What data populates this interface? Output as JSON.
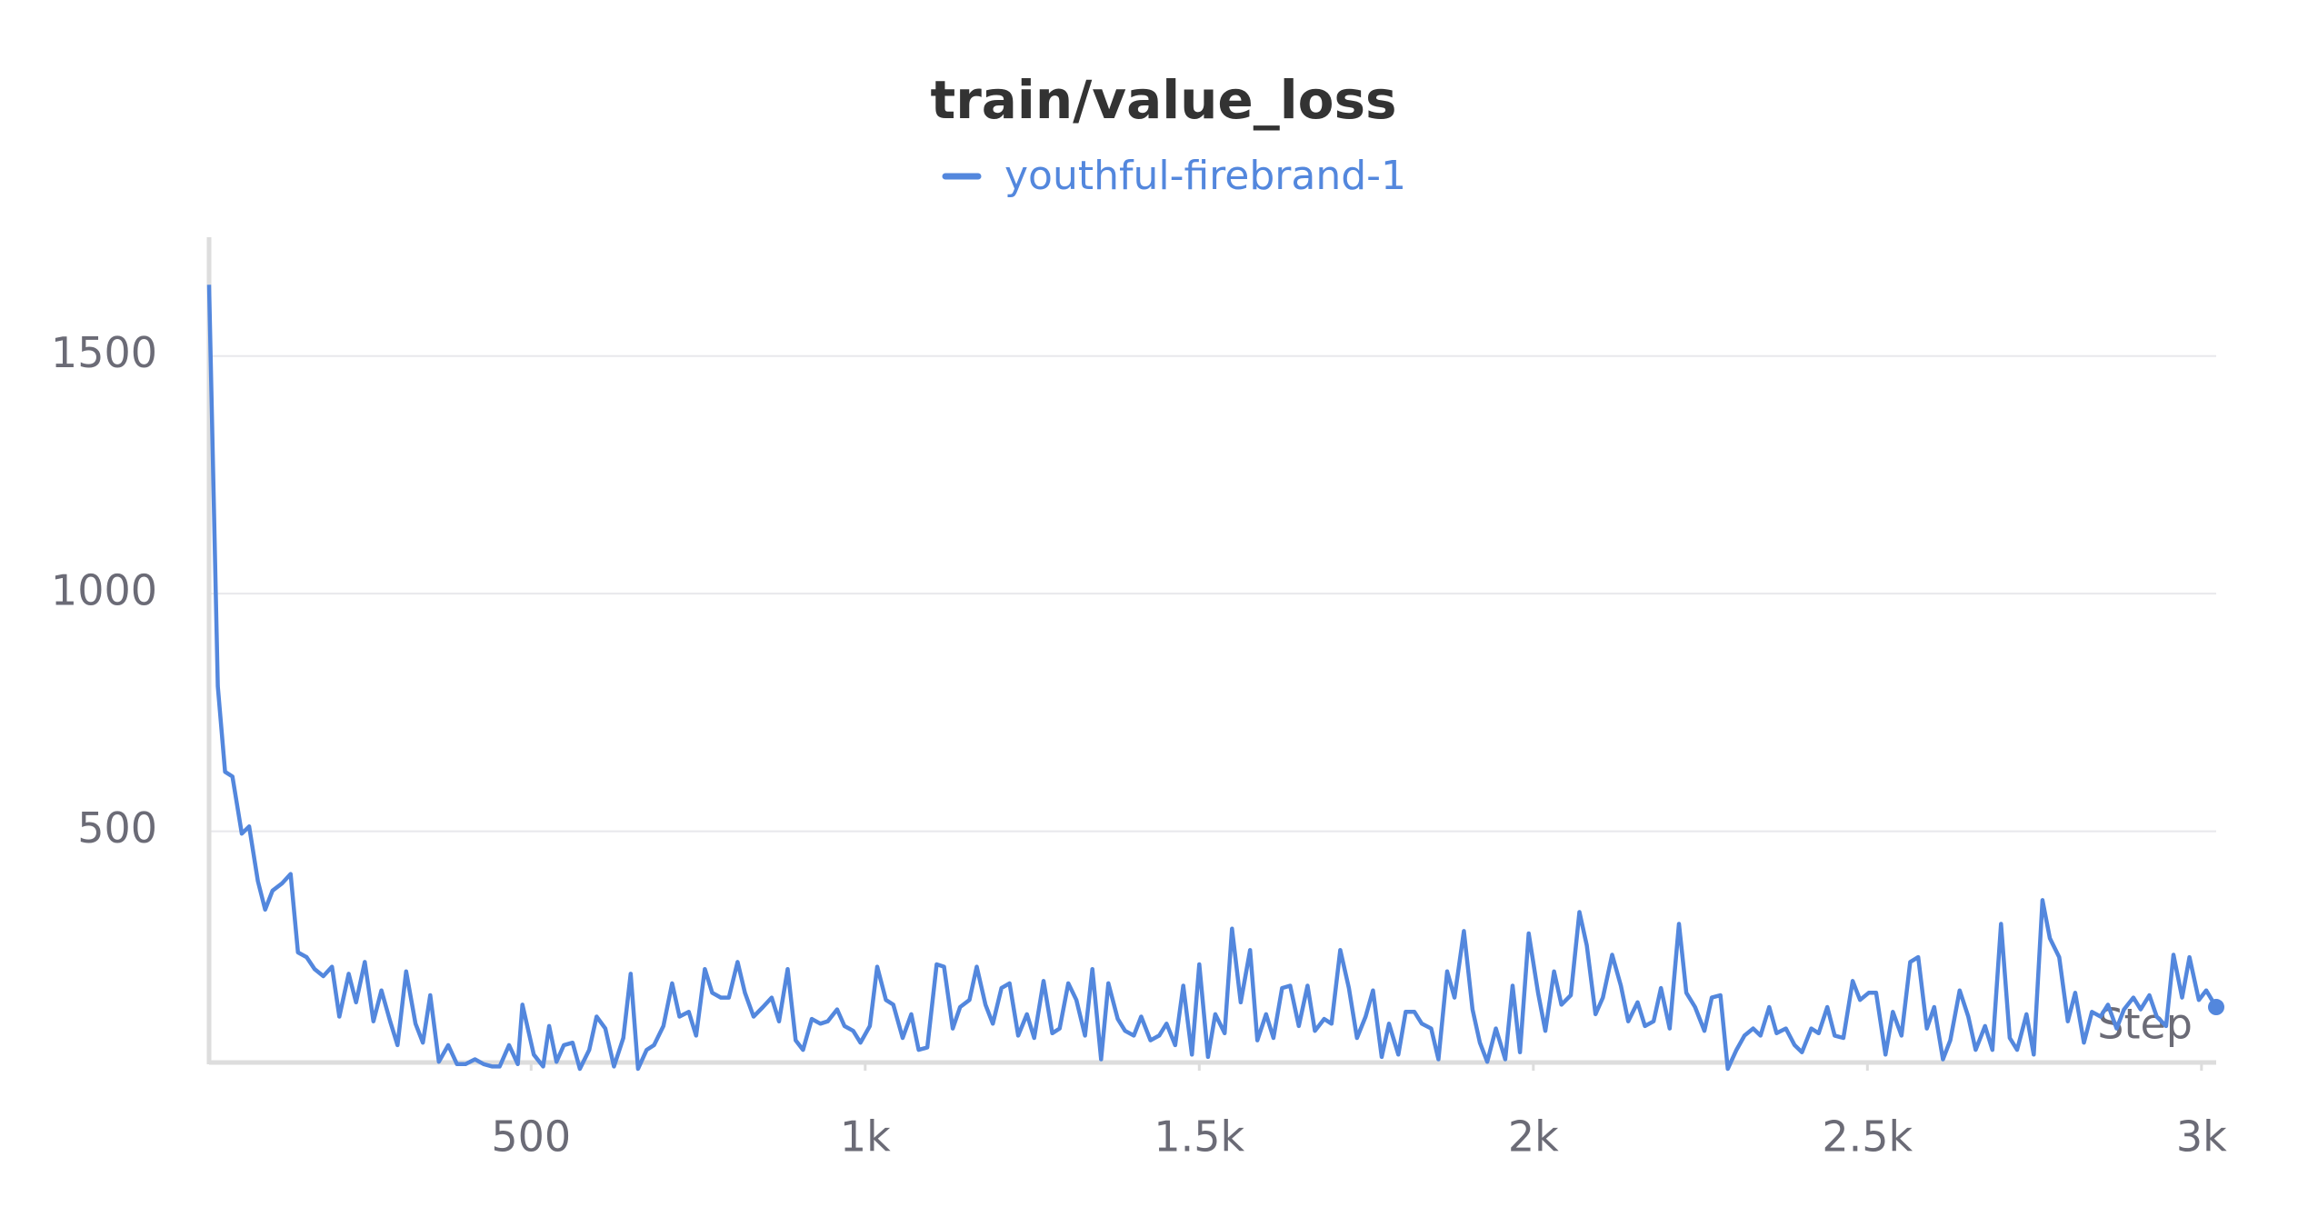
{
  "chart_data": {
    "type": "line",
    "title": "train/value_loss",
    "x_label": "Step",
    "x": [
      18,
      31,
      42,
      53,
      67,
      78,
      91,
      102,
      113,
      127,
      140,
      151,
      164,
      176,
      189,
      202,
      213,
      227,
      238,
      251,
      264,
      276,
      289,
      300,
      313,
      327,
      338,
      349,
      362,
      376,
      389,
      402,
      416,
      429,
      442,
      453,
      467,
      480,
      487,
      504,
      518,
      527,
      538,
      549,
      562,
      573,
      587,
      598,
      611,
      624,
      638,
      649,
      660,
      673,
      684,
      698,
      711,
      722,
      736,
      747,
      760,
      771,
      784,
      796,
      809,
      820,
      833,
      847,
      860,
      871,
      884,
      896,
      907,
      920,
      933,
      944,
      958,
      969,
      982,
      993,
      1007,
      1018,
      1031,
      1042,
      1056,
      1069,
      1080,
      1093,
      1107,
      1118,
      1131,
      1142,
      1156,
      1167,
      1180,
      1191,
      1204,
      1216,
      1229,
      1242,
      1253,
      1267,
      1280,
      1291,
      1304,
      1316,
      1329,
      1340,
      1353,
      1364,
      1378,
      1389,
      1402,
      1413,
      1427,
      1440,
      1451,
      1464,
      1476,
      1489,
      1500,
      1513,
      1524,
      1538,
      1549,
      1562,
      1576,
      1587,
      1600,
      1611,
      1624,
      1636,
      1649,
      1662,
      1673,
      1687,
      1698,
      1711,
      1724,
      1736,
      1749,
      1760,
      1773,
      1784,
      1798,
      1809,
      1822,
      1833,
      1847,
      1858,
      1871,
      1882,
      1896,
      1909,
      1920,
      1931,
      1944,
      1958,
      1969,
      1980,
      1993,
      2007,
      2018,
      2031,
      2042,
      2056,
      2069,
      2080,
      2093,
      2104,
      2118,
      2131,
      2142,
      2156,
      2167,
      2180,
      2191,
      2204,
      2218,
      2229,
      2242,
      2256,
      2267,
      2280,
      2291,
      2304,
      2316,
      2329,
      2340,
      2353,
      2364,
      2378,
      2391,
      2402,
      2416,
      2427,
      2440,
      2451,
      2464,
      2478,
      2489,
      2502,
      2513,
      2527,
      2538,
      2551,
      2564,
      2576,
      2589,
      2600,
      2613,
      2624,
      2638,
      2651,
      2662,
      2676,
      2687,
      2700,
      2713,
      2724,
      2738,
      2749,
      2762,
      2773,
      2787,
      2800,
      2811,
      2824,
      2836,
      2849,
      2860,
      2873,
      2884,
      2898,
      2909,
      2922,
      2933,
      2947,
      2958,
      2971,
      2982,
      2996,
      3007,
      3022
    ],
    "series": [
      {
        "name": "youthful-firebrand-1",
        "color": "#5387dd",
        "values": [
          1650,
          805,
          625,
          615,
          495,
          510,
          395,
          335,
          375,
          390,
          410,
          245,
          235,
          210,
          195,
          215,
          110,
          200,
          140,
          225,
          100,
          165,
          100,
          50,
          205,
          95,
          55,
          155,
          15,
          50,
          10,
          10,
          20,
          10,
          5,
          5,
          50,
          10,
          135,
          30,
          5,
          90,
          15,
          50,
          55,
          0,
          40,
          110,
          85,
          5,
          65,
          200,
          0,
          40,
          50,
          90,
          180,
          110,
          120,
          70,
          210,
          160,
          150,
          150,
          225,
          160,
          110,
          130,
          150,
          100,
          210,
          60,
          40,
          105,
          95,
          100,
          125,
          90,
          80,
          55,
          90,
          215,
          145,
          135,
          65,
          115,
          40,
          45,
          220,
          215,
          85,
          130,
          145,
          215,
          135,
          95,
          170,
          180,
          70,
          115,
          65,
          185,
          75,
          85,
          180,
          145,
          70,
          210,
          20,
          180,
          105,
          80,
          70,
          110,
          60,
          70,
          95,
          50,
          175,
          30,
          220,
          25,
          115,
          75,
          295,
          140,
          250,
          60,
          115,
          65,
          170,
          175,
          90,
          175,
          80,
          105,
          95,
          250,
          170,
          65,
          110,
          165,
          25,
          95,
          30,
          120,
          120,
          95,
          85,
          20,
          205,
          150,
          290,
          125,
          55,
          15,
          85,
          20,
          175,
          35,
          285,
          160,
          80,
          205,
          135,
          155,
          330,
          260,
          115,
          150,
          240,
          175,
          100,
          140,
          90,
          100,
          170,
          85,
          305,
          160,
          130,
          80,
          150,
          155,
          0,
          40,
          70,
          85,
          70,
          130,
          75,
          85,
          50,
          35,
          85,
          75,
          130,
          70,
          65,
          185,
          145,
          160,
          160,
          30,
          120,
          70,
          225,
          235,
          85,
          130,
          20,
          60,
          165,
          110,
          40,
          90,
          40,
          305,
          65,
          40,
          115,
          30,
          355,
          275,
          235,
          100,
          160,
          55,
          120,
          110,
          135,
          85,
          125,
          150,
          125,
          155,
          110,
          90,
          240,
          150,
          235,
          145,
          165,
          130
        ]
      }
    ],
    "xlim": [
      18,
      3022
    ],
    "ylim": [
      0,
      1750
    ],
    "xticks": [
      500,
      {
        "value": 1000,
        "label": "1k"
      },
      {
        "value": 1500,
        "label": "1.5k"
      },
      {
        "value": 2000,
        "label": "2k"
      },
      {
        "value": 2500,
        "label": "2.5k"
      },
      {
        "value": 3000,
        "label": "3k"
      }
    ],
    "yticks": [
      500,
      1000,
      1500
    ],
    "grid": true,
    "legend": "top"
  }
}
